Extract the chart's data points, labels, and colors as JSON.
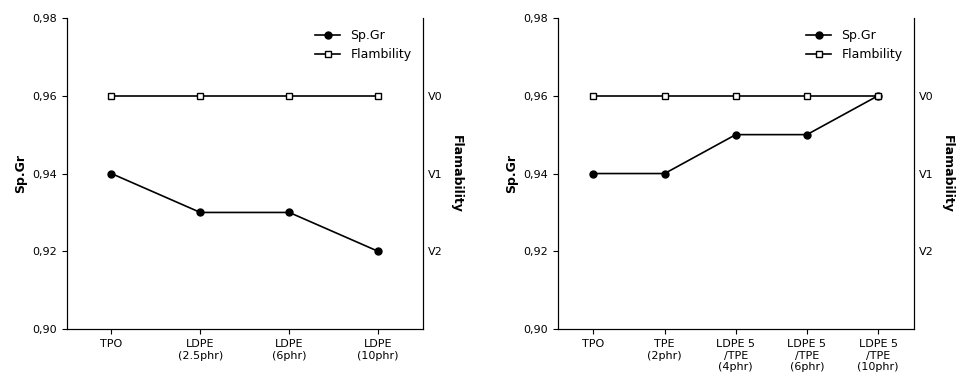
{
  "chart1": {
    "x_labels": [
      "TPO",
      "LDPE\n(2.5phr)",
      "LDPE\n(6phr)",
      "LDPE\n(10phr)"
    ],
    "spgr_values": [
      0.94,
      0.93,
      0.93,
      0.92
    ],
    "flam_values": [
      0.96,
      0.96,
      0.96,
      0.96
    ],
    "ylim": [
      0.9,
      0.98
    ],
    "yticks": [
      0.9,
      0.92,
      0.94,
      0.96,
      0.98
    ],
    "right_yticks": [
      0.96,
      0.94,
      0.92
    ],
    "right_labels": [
      "V0",
      "V1",
      "V2"
    ],
    "ylabel": "Sp.Gr",
    "right_ylabel": "Flamability"
  },
  "chart2": {
    "x_labels": [
      "TPO",
      "TPE\n(2phr)",
      "LDPE 5\n/TPE\n(4phr)",
      "LDPE 5\n/TPE\n(6phr)",
      "LDPE 5\n/TPE\n(10phr)"
    ],
    "spgr_values": [
      0.94,
      0.94,
      0.95,
      0.95,
      0.96
    ],
    "flam_values": [
      0.96,
      0.96,
      0.96,
      0.96,
      0.96
    ],
    "ylim": [
      0.9,
      0.98
    ],
    "yticks": [
      0.9,
      0.92,
      0.94,
      0.96,
      0.98
    ],
    "right_yticks": [
      0.96,
      0.94,
      0.92
    ],
    "right_labels": [
      "V0",
      "V1",
      "V2"
    ],
    "ylabel": "Sp.Gr",
    "right_ylabel": "Flamability"
  },
  "legend_spgr": "Sp.Gr",
  "legend_flam": "Flambility",
  "line_color": "#000000",
  "bg_color": "#ffffff",
  "fontsize_axis": 9,
  "fontsize_tick": 8,
  "fontsize_legend": 9
}
